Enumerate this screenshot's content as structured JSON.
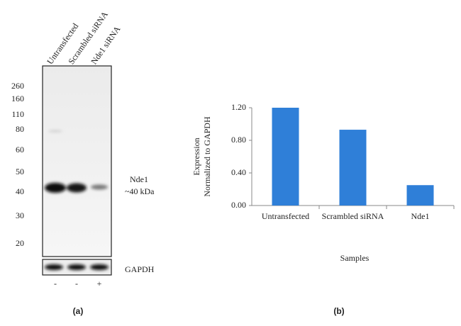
{
  "blot": {
    "lanes": [
      "Untransfected",
      "Scrambled siRNA",
      "Nde1 siRNA"
    ],
    "markers": [
      260,
      160,
      110,
      80,
      60,
      50,
      40,
      30,
      20
    ],
    "band_label": "Nde1",
    "band_size": "~40 kDa",
    "loading_control": "GAPDH",
    "treatment": [
      "-",
      "-",
      "+"
    ],
    "panel_label": "(a)"
  },
  "chart_data": {
    "type": "bar",
    "ylabel": [
      "Expression",
      "Normalized to GAPDH"
    ],
    "xlabel": "Samples",
    "categories": [
      "Untransfected",
      "Scrambled siRNA",
      "Nde1"
    ],
    "values": [
      1.2,
      0.93,
      0.25
    ],
    "color": "#2f7fd8",
    "ylim": [
      0,
      1.2
    ],
    "yticks": [
      {
        "value": 0,
        "label": "0.00"
      },
      {
        "value": 0.4,
        "label": "0.40"
      },
      {
        "value": 0.8,
        "label": "0.80"
      },
      {
        "value": 1.2,
        "label": "1.20"
      }
    ],
    "panel_label": "(b)"
  }
}
